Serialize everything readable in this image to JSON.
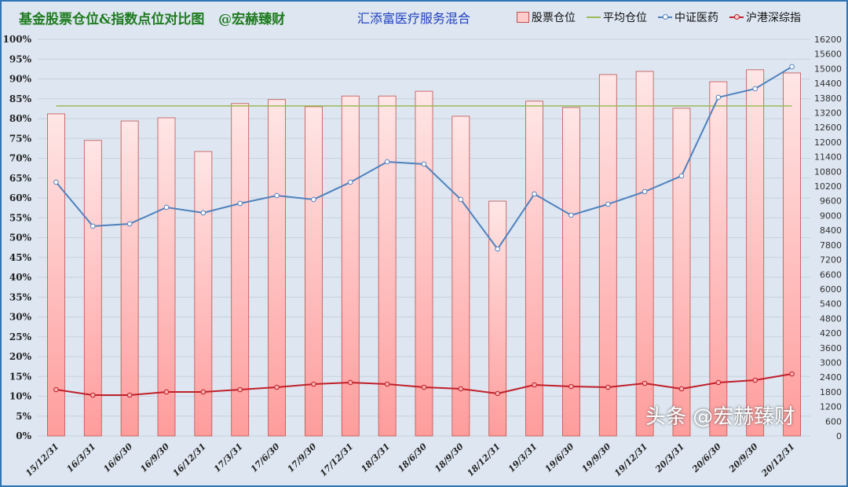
{
  "chart_data": {
    "type": "bar+line",
    "title": "基金股票仓位&指数点位对比图   @宏赫臻财",
    "subtitle": "汇添富医疗服务混合",
    "legend_position": "top-right",
    "grid": true,
    "categories": [
      "15/12/31",
      "16/3/31",
      "16/6/30",
      "16/9/30",
      "16/12/31",
      "17/3/31",
      "17/6/30",
      "17/9/30",
      "17/12/31",
      "18/3/31",
      "18/6/30",
      "18/9/30",
      "18/12/31",
      "19/3/31",
      "19/6/30",
      "19/9/30",
      "19/12/31",
      "20/3/31",
      "20/6/30",
      "20/9/30",
      "20/12/31"
    ],
    "y_left": {
      "min": 0,
      "max": 100,
      "step": 5,
      "unit": "%"
    },
    "y_right": {
      "min": 0,
      "max": 16200,
      "step": 600
    },
    "series": [
      {
        "name": "股票仓位",
        "type": "bar",
        "axis": "left",
        "color": "#ff9c9c",
        "values": [
          81.2,
          74.5,
          79.4,
          80.2,
          71.7,
          83.8,
          84.8,
          83.0,
          85.7,
          85.7,
          86.9,
          80.6,
          59.2,
          84.4,
          82.8,
          91.1,
          91.9,
          82.6,
          89.3,
          92.3,
          91.5
        ]
      },
      {
        "name": "平均仓位",
        "type": "line",
        "axis": "left",
        "color": "#9bbb59",
        "value": 83.2
      },
      {
        "name": "中证医药",
        "type": "line",
        "axis": "right",
        "color": "#4f81bd",
        "values": [
          10363,
          8566,
          8662,
          9336,
          9111,
          9496,
          9817,
          9657,
          10363,
          11197,
          11101,
          9657,
          7636,
          9881,
          9015,
          9464,
          9977,
          10619,
          13828,
          14181,
          15079
        ]
      },
      {
        "name": "沪港深综指",
        "type": "line",
        "axis": "right",
        "color": "#c0202a",
        "values": [
          1893,
          1668,
          1668,
          1797,
          1797,
          1893,
          1989,
          2117,
          2182,
          2117,
          1989,
          1925,
          1732,
          2085,
          2021,
          1989,
          2149,
          1925,
          2182,
          2278,
          2534
        ]
      }
    ]
  },
  "watermark": "头条 @宏赫臻财"
}
